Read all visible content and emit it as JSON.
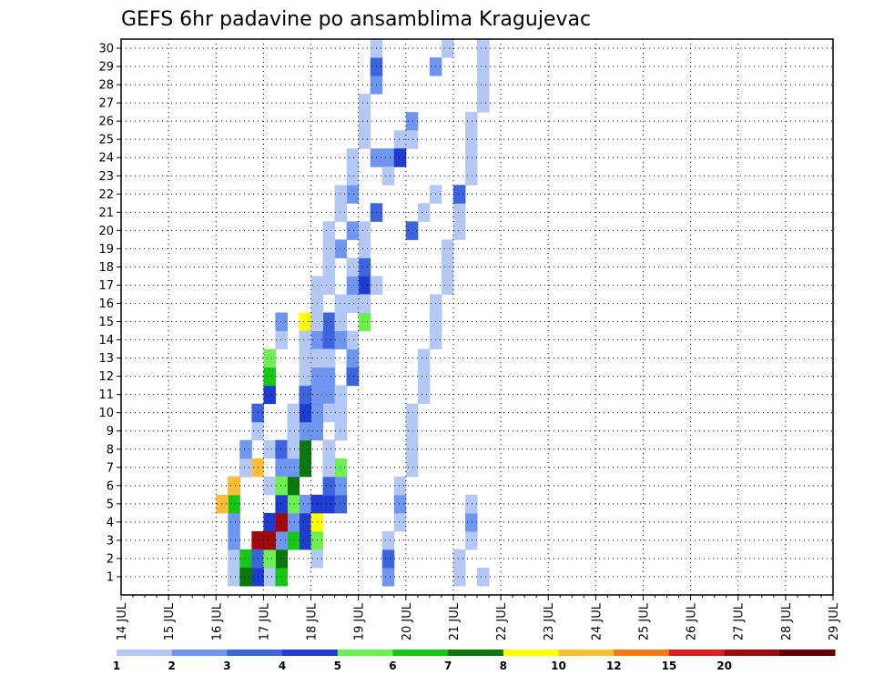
{
  "chart_data": {
    "type": "heatmap",
    "title": "GEFS 6hr padavine po ansamblima Kragujevac",
    "xlabel": "",
    "ylabel": "",
    "x_tick_labels": [
      "14 JUL",
      "15 JUL",
      "16 JUL",
      "17 JUL",
      "18 JUL",
      "19 JUL",
      "20 JUL",
      "21 JUL",
      "22 JUL",
      "23 JUL",
      "24 JUL",
      "25 JUL",
      "26 JUL",
      "27 JUL",
      "28 JUL",
      "29 JUL"
    ],
    "y_tick_labels": [
      "1",
      "2",
      "3",
      "4",
      "5",
      "6",
      "7",
      "8",
      "9",
      "10",
      "11",
      "12",
      "13",
      "14",
      "15",
      "16",
      "17",
      "18",
      "19",
      "20",
      "21",
      "22",
      "23",
      "24",
      "25",
      "26",
      "27",
      "28",
      "29",
      "30"
    ],
    "grid": true,
    "colorbar": {
      "labels": [
        "1",
        "2",
        "3",
        "4",
        "5",
        "6",
        "7",
        "8",
        "10",
        "12",
        "15",
        "20"
      ],
      "colors": [
        "#b4c8f5",
        "#6e96f0",
        "#3c64dc",
        "#1e3cd2",
        "#6ef050",
        "#14c814",
        "#0a780a",
        "#ffff00",
        "#ffbe32",
        "#f57814",
        "#dc1e1e",
        "#a00a0a",
        "#640000"
      ]
    },
    "x_time_range_start": "14 JUL",
    "steps_per_day": 4,
    "cells": [
      [
        0,
        9,
        0
      ],
      [
        1,
        9,
        0
      ],
      [
        2,
        9,
        1
      ],
      [
        3,
        9,
        1
      ],
      [
        4,
        9,
        5
      ],
      [
        5,
        9,
        6
      ],
      [
        6,
        10,
        10
      ],
      [
        6,
        11,
        8
      ],
      [
        7,
        12,
        0
      ],
      [
        7,
        13,
        0
      ],
      [
        8,
        15,
        0
      ],
      [
        9,
        15,
        1
      ],
      [
        9,
        16,
        1
      ],
      [
        10,
        17,
        1
      ],
      [
        11,
        16,
        2
      ],
      [
        11,
        17,
        2
      ],
      [
        12,
        16,
        9
      ],
      [
        12,
        17,
        12
      ],
      [
        13,
        15,
        0
      ],
      [
        13,
        16,
        1
      ],
      [
        13,
        17,
        1
      ],
      [
        14,
        15,
        7
      ],
      [
        14,
        16,
        10
      ],
      [
        14,
        17,
        10
      ],
      [
        15,
        16,
        2
      ],
      [
        16,
        17,
        0
      ],
      [
        17,
        17,
        0
      ],
      [
        18,
        18,
        1
      ],
      [
        19,
        19,
        1
      ],
      [
        21,
        19,
        1
      ],
      [
        23,
        21,
        1
      ],
      [
        23,
        22,
        1
      ],
      [
        24,
        23,
        0
      ],
      [
        25,
        24,
        1
      ],
      [
        28,
        26,
        1
      ],
      [
        29,
        27,
        0
      ],
      [
        30,
        28,
        0
      ],
      [
        31,
        28,
        0
      ],
      [
        32,
        29,
        0
      ],
      [
        33,
        29,
        1
      ],
      [
        34,
        29,
        0
      ],
      [
        0,
        10,
        1
      ],
      [
        0,
        11,
        5
      ],
      [
        1,
        10,
        5
      ],
      [
        1,
        11,
        3
      ],
      [
        2,
        11,
        11
      ],
      [
        3,
        12,
        7
      ],
      [
        4,
        13,
        4
      ],
      [
        5,
        12,
        0
      ],
      [
        6,
        13,
        1
      ],
      [
        7,
        13,
        2
      ],
      [
        8,
        14,
        0
      ],
      [
        9,
        15,
        3
      ],
      [
        10,
        16,
        4
      ],
      [
        11,
        16,
        1
      ],
      [
        12,
        16,
        1
      ],
      [
        13,
        17,
        3
      ],
      [
        14,
        18,
        0
      ],
      [
        15,
        19,
        0
      ],
      [
        16,
        20,
        3
      ],
      [
        17,
        20,
        2
      ],
      [
        20,
        21,
        2
      ],
      [
        22,
        22,
        0
      ],
      [
        23,
        23,
        3
      ],
      [
        24,
        24,
        0
      ],
      [
        0,
        12,
        0
      ],
      [
        1,
        12,
        2
      ],
      [
        1,
        13,
        2
      ],
      [
        2,
        14,
        6
      ],
      [
        2,
        15,
        3
      ],
      [
        3,
        15,
        11
      ],
      [
        3,
        16,
        12
      ],
      [
        4,
        17,
        3
      ],
      [
        4,
        18,
        2
      ],
      [
        5,
        18,
        1
      ],
      [
        6,
        18,
        4
      ],
      [
        7,
        17,
        2
      ],
      [
        8,
        16,
        1
      ],
      [
        9,
        17,
        0
      ],
      [
        10,
        18,
        0
      ],
      [
        11,
        19,
        3
      ],
      [
        12,
        19,
        1
      ],
      [
        13,
        18,
        0
      ],
      [
        14,
        20,
        4
      ],
      [
        15,
        20,
        0
      ],
      [
        16,
        21,
        0
      ],
      [
        19,
        24,
        2
      ],
      [
        20,
        25,
        0
      ],
      [
        21,
        26,
        0
      ],
      [
        0,
        10,
        0
      ],
      [
        0,
        11,
        3
      ],
      [
        1,
        12,
        1
      ],
      [
        1,
        13,
        3
      ],
      [
        2,
        13,
        8
      ],
      [
        2,
        14,
        5
      ],
      [
        3,
        14,
        2
      ],
      [
        3,
        15,
        3
      ],
      [
        4,
        15,
        1
      ],
      [
        4,
        16,
        0
      ],
      [
        5,
        17,
        0
      ],
      [
        6,
        17,
        5
      ],
      [
        7,
        17,
        1
      ],
      [
        8,
        18,
        0
      ],
      [
        9,
        18,
        1
      ],
      [
        10,
        18,
        0
      ],
      [
        11,
        19,
        2
      ],
      [
        12,
        19,
        1
      ],
      [
        13,
        19,
        0
      ],
      [
        0,
        9,
        0
      ],
      [
        0,
        10,
        3
      ],
      [
        1,
        11,
        0
      ],
      [
        1,
        12,
        1
      ],
      [
        2,
        12,
        2
      ],
      [
        3,
        12,
        3
      ],
      [
        3,
        13,
        4
      ],
      [
        4,
        13,
        5
      ],
      [
        5,
        14,
        11
      ],
      [
        6,
        14,
        7
      ],
      [
        7,
        15,
        1
      ],
      [
        8,
        15,
        0
      ],
      [
        9,
        16,
        1
      ],
      [
        10,
        16,
        2
      ],
      [
        11,
        16,
        1
      ],
      [
        12,
        16,
        0
      ],
      [
        13,
        17,
        2
      ],
      [
        14,
        17,
        2
      ],
      [
        4,
        8,
        8
      ],
      [
        5,
        9,
        8
      ],
      [
        6,
        10,
        0
      ],
      [
        7,
        10,
        1
      ],
      [
        8,
        11,
        0
      ],
      [
        9,
        11,
        2
      ],
      [
        10,
        12,
        3
      ],
      [
        11,
        12,
        5
      ],
      [
        12,
        12,
        4
      ],
      [
        13,
        13,
        0
      ],
      [
        14,
        13,
        1
      ],
      [
        0,
        13,
        5
      ],
      [
        1,
        13,
        6
      ],
      [
        2,
        13,
        1
      ],
      [
        3,
        14,
        1
      ],
      [
        4,
        14,
        4
      ],
      [
        5,
        14,
        6
      ],
      [
        6,
        15,
        6
      ],
      [
        7,
        15,
        6
      ],
      [
        8,
        15,
        1
      ],
      [
        9,
        15,
        3
      ],
      [
        10,
        16,
        1
      ],
      [
        11,
        17,
        1
      ],
      [
        12,
        17,
        0
      ],
      [
        13,
        18,
        1
      ],
      [
        14,
        18,
        0
      ],
      [
        15,
        18,
        0
      ],
      [
        16,
        19,
        1
      ],
      [
        17,
        19,
        0
      ],
      [
        18,
        20,
        0
      ],
      [
        19,
        20,
        0
      ],
      [
        1,
        16,
        0
      ],
      [
        2,
        16,
        4
      ],
      [
        3,
        16,
        7
      ],
      [
        4,
        16,
        3
      ],
      [
        5,
        17,
        2
      ],
      [
        6,
        17,
        0
      ],
      [
        7,
        17,
        0
      ],
      [
        8,
        18,
        0
      ],
      [
        9,
        18,
        0
      ],
      [
        0,
        9,
        0
      ],
      [
        0,
        10,
        6
      ],
      [
        1,
        11,
        2
      ],
      [
        1,
        12,
        4
      ],
      [
        2,
        12,
        11
      ],
      [
        3,
        13,
        11
      ],
      [
        4,
        13,
        3
      ],
      [
        5,
        13,
        4
      ],
      [
        6,
        14,
        1
      ],
      [
        7,
        14,
        0
      ],
      [
        8,
        14,
        0
      ],
      [
        9,
        14,
        0
      ],
      [
        10,
        15,
        2
      ],
      [
        11,
        15,
        0
      ],
      [
        12,
        15,
        0
      ],
      [
        13,
        15,
        0
      ],
      [
        14,
        16,
        0
      ],
      [
        15,
        16,
        0
      ],
      [
        16,
        16,
        0
      ],
      [
        17,
        17,
        0
      ],
      [
        18,
        17,
        0
      ],
      [
        19,
        17,
        0
      ],
      [
        20,
        18,
        0
      ],
      [
        21,
        18,
        0
      ],
      [
        22,
        19,
        0
      ],
      [
        23,
        19,
        0
      ],
      [
        24,
        20,
        0
      ],
      [
        25,
        20,
        0
      ],
      [
        26,
        20,
        0
      ],
      [
        27,
        21,
        1
      ],
      [
        28,
        21,
        2
      ],
      [
        29,
        21,
        0
      ],
      [
        30,
        22,
        1
      ],
      [
        31,
        22,
        2
      ],
      [
        32,
        22,
        0
      ],
      [
        33,
        23,
        0
      ],
      [
        34,
        23,
        1
      ],
      [
        35,
        23,
        0
      ],
      [
        36,
        24,
        0
      ],
      [
        37,
        24,
        0
      ],
      [
        38,
        24,
        0
      ],
      [
        39,
        24,
        0
      ],
      [
        40,
        25,
        0
      ],
      [
        41,
        25,
        0
      ],
      [
        42,
        25,
        0
      ],
      [
        43,
        26,
        0
      ],
      [
        44,
        26,
        0
      ],
      [
        45,
        26,
        0
      ],
      [
        46,
        27,
        0
      ],
      [
        47,
        27,
        0
      ],
      [
        48,
        27,
        0
      ],
      [
        49,
        28,
        0
      ],
      [
        50,
        28,
        0
      ],
      [
        51,
        28,
        2
      ],
      [
        52,
        29,
        0
      ],
      [
        53,
        29,
        0
      ],
      [
        54,
        29,
        0
      ],
      [
        55,
        29,
        0
      ],
      [
        56,
        30,
        0
      ],
      [
        57,
        30,
        0
      ],
      [
        58,
        30,
        0
      ],
      [
        59,
        30,
        0
      ],
      [
        60,
        30,
        0
      ]
    ]
  }
}
